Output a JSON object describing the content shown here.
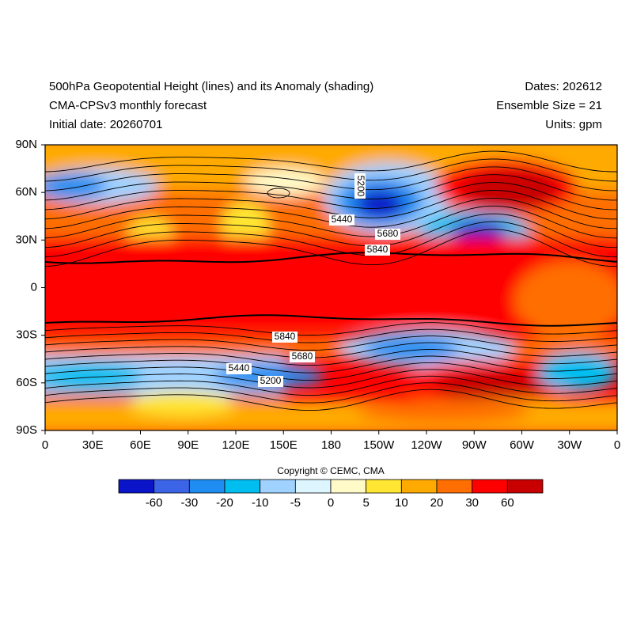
{
  "header": {
    "left": [
      "500hPa Geopotential Height (lines) and its Anomaly (shading)",
      "CMA-CPSv3 monthly forecast",
      "Initial date: 20260701"
    ],
    "right": [
      "Dates: 202612",
      "Ensemble Size = 21",
      "Units: gpm"
    ]
  },
  "map": {
    "y_labels": [
      "90N",
      "60N",
      "30N",
      "0",
      "30S",
      "60S",
      "90S"
    ],
    "x_labels": [
      "0",
      "30E",
      "60E",
      "90E",
      "120E",
      "150E",
      "180",
      "150W",
      "120W",
      "90W",
      "60W",
      "30W",
      "0"
    ],
    "contour_labels": [
      "5200",
      "5440",
      "5680",
      "5840",
      "5840",
      "5680",
      "5440",
      "5200"
    ]
  },
  "colorbar": {
    "colors": [
      "#0a14c8",
      "#3c64e6",
      "#1e8cf0",
      "#00bef0",
      "#a0d2ff",
      "#dcf5ff",
      "#fffac8",
      "#ffe632",
      "#ffaa00",
      "#ff6e00",
      "#ff0000",
      "#c80000"
    ],
    "labels": [
      "-60",
      "-30",
      "-20",
      "-10",
      "-5",
      "0",
      "5",
      "10",
      "20",
      "30",
      "60"
    ]
  },
  "copyright": "Copyright © CEMC, CMA"
}
